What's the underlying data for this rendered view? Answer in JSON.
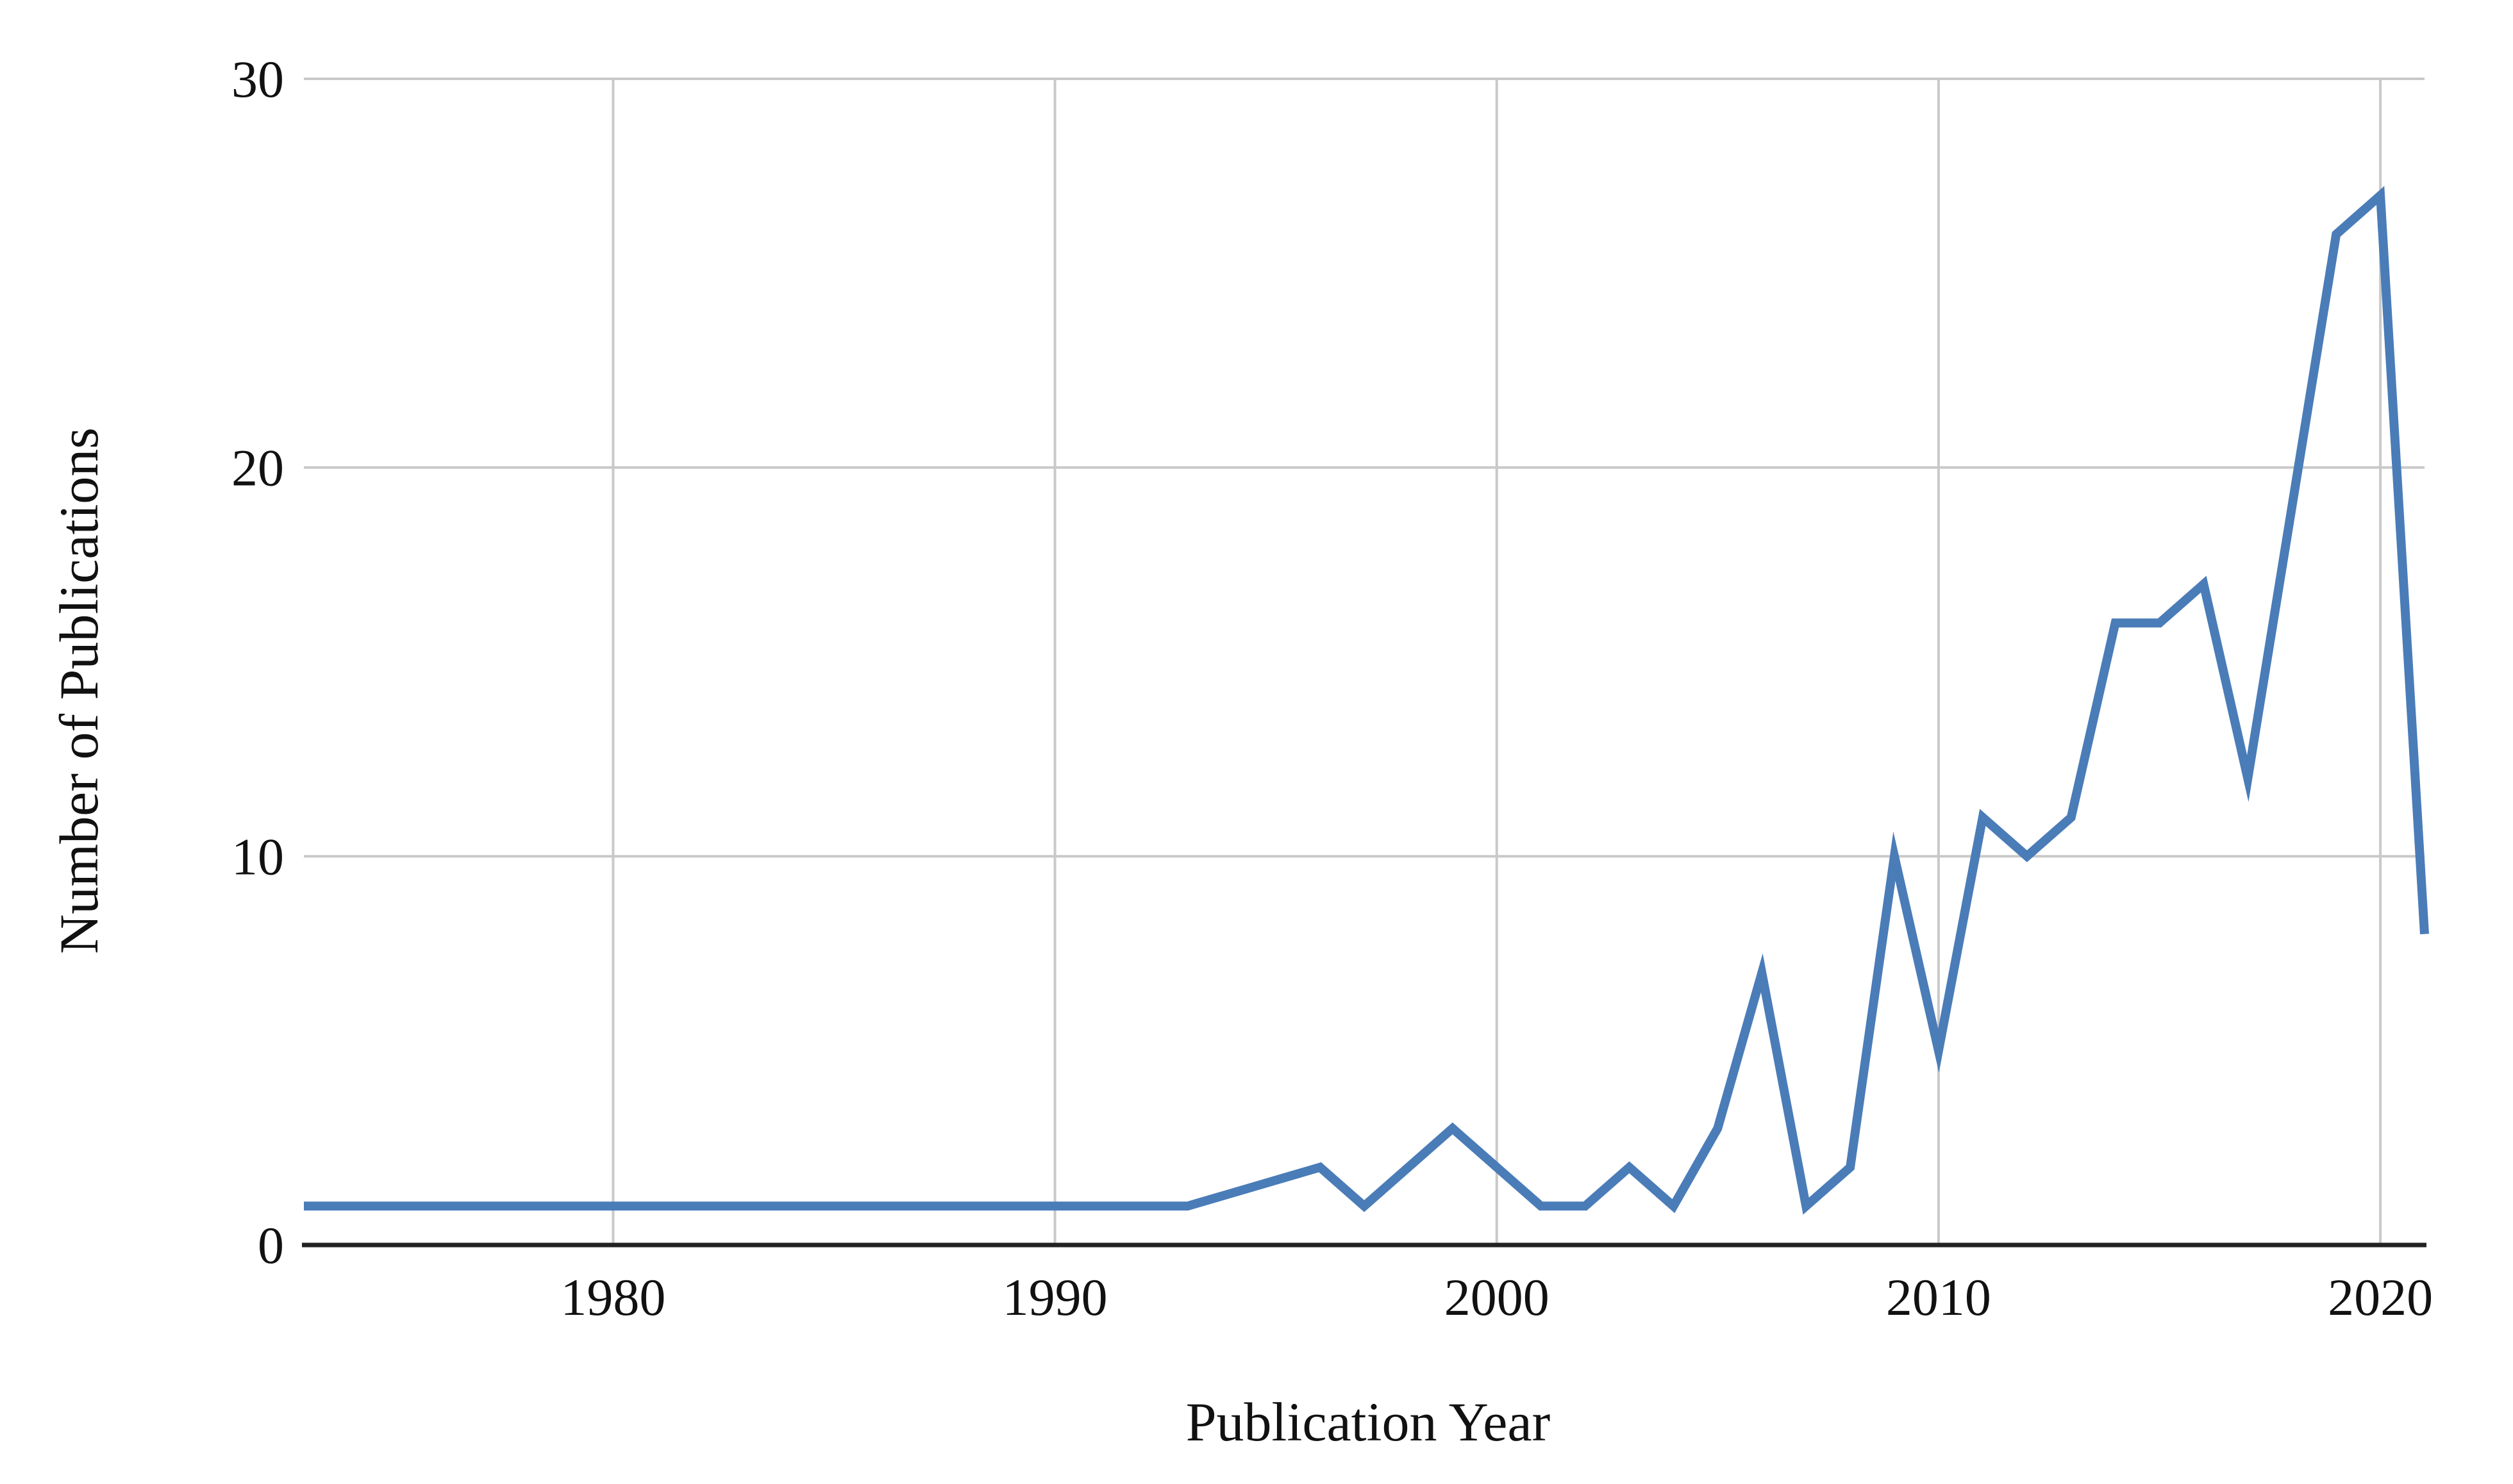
{
  "chart_data": {
    "type": "line",
    "title": "",
    "xlabel": "Publication Year",
    "ylabel": "Number of Publications",
    "xlim": [
      1973,
      2021
    ],
    "ylim": [
      0,
      30
    ],
    "x_ticks": [
      1980,
      1990,
      2000,
      2010,
      2020
    ],
    "y_ticks": [
      0,
      10,
      20,
      30
    ],
    "grid": true,
    "legend_position": "none",
    "colors": {
      "line": "#4a7cb8",
      "gridline": "#c9c9c9",
      "axis": "#222222",
      "text": "#111111",
      "background": "#ffffff"
    },
    "series": [
      {
        "name": "Publications",
        "points": [
          [
            1973,
            1
          ],
          [
            1974,
            1
          ],
          [
            1975,
            1
          ],
          [
            1976,
            1
          ],
          [
            1977,
            1
          ],
          [
            1978,
            1
          ],
          [
            1979,
            1
          ],
          [
            1980,
            1
          ],
          [
            1981,
            1
          ],
          [
            1982,
            1
          ],
          [
            1983,
            1
          ],
          [
            1984,
            1
          ],
          [
            1985,
            1
          ],
          [
            1986,
            1
          ],
          [
            1987,
            1
          ],
          [
            1988,
            1
          ],
          [
            1989,
            1
          ],
          [
            1990,
            1
          ],
          [
            1991,
            1
          ],
          [
            1992,
            1
          ],
          [
            1993,
            1
          ],
          [
            1996,
            2
          ],
          [
            1997,
            1
          ],
          [
            1999,
            3
          ],
          [
            2001,
            1
          ],
          [
            2002,
            1
          ],
          [
            2003,
            2
          ],
          [
            2004,
            1
          ],
          [
            2005,
            3
          ],
          [
            2006,
            7
          ],
          [
            2007,
            1
          ],
          [
            2008,
            2
          ],
          [
            2009,
            10
          ],
          [
            2010,
            5
          ],
          [
            2011,
            11
          ],
          [
            2012,
            10
          ],
          [
            2013,
            11
          ],
          [
            2014,
            16
          ],
          [
            2015,
            16
          ],
          [
            2016,
            17
          ],
          [
            2017,
            12
          ],
          [
            2019,
            26
          ],
          [
            2020,
            27
          ],
          [
            2021,
            8
          ]
        ]
      }
    ]
  }
}
